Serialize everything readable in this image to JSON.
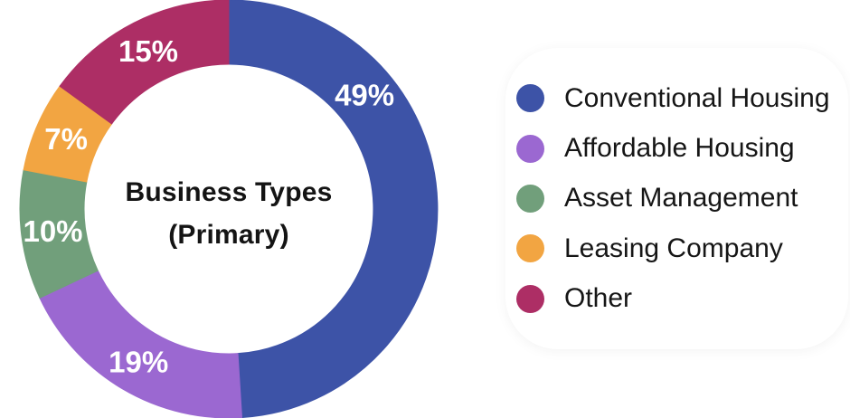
{
  "chart_data": {
    "type": "pie",
    "variant": "donut",
    "title": "Business Types (Primary)",
    "title_lines": [
      "Business Types",
      "(Primary)"
    ],
    "start_angle_deg": 0,
    "direction": "clockwise",
    "legend_position": "right",
    "label_format": "percent",
    "label_color": "#ffffff",
    "slices": [
      {
        "label": "Conventional Housing",
        "value": 49,
        "pct_label": "49%",
        "color": "#3D53A7",
        "label_angle_deg": 50
      },
      {
        "label": "Affordable Housing",
        "value": 19,
        "pct_label": "19%",
        "color": "#9B68D1"
      },
      {
        "label": "Asset Management",
        "value": 10,
        "pct_label": "10%",
        "color": "#719F7B"
      },
      {
        "label": "Leasing Company",
        "value": 7,
        "pct_label": "7%",
        "color": "#F2A542"
      },
      {
        "label": "Other",
        "value": 15,
        "pct_label": "15%",
        "color": "#AD2E65"
      }
    ]
  }
}
